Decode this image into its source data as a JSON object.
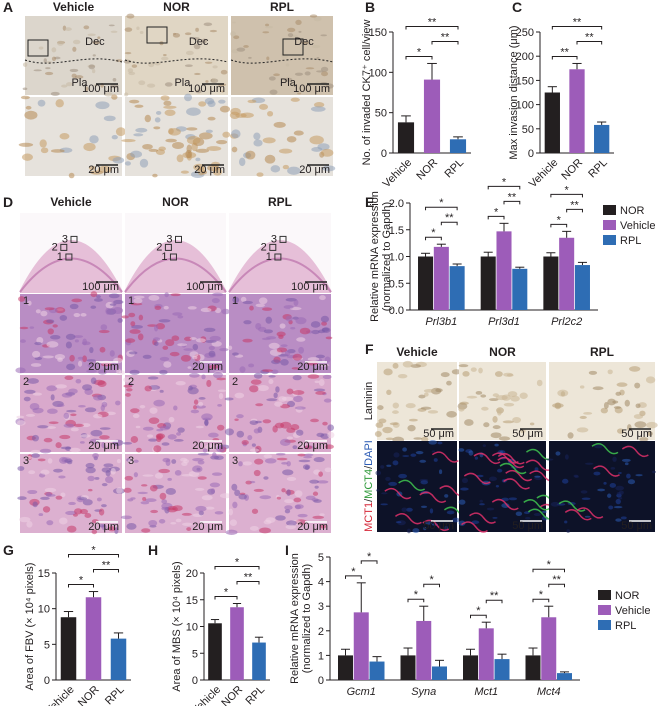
{
  "image_panels": [
    {
      "letter": "A",
      "columns": [
        "Vehicle",
        "NOR",
        "RPL"
      ],
      "zones": [
        "Dec",
        "Pla"
      ],
      "scale_overview": "100 μm",
      "scale_detail": "20 μm"
    },
    {
      "letter": "D",
      "columns": [
        "Vehicle",
        "NOR",
        "RPL"
      ],
      "regions": [
        "1",
        "2",
        "3"
      ],
      "scale_overview": "100 μm",
      "scale_detail": "20 μm"
    },
    {
      "letter": "F",
      "columns": [
        "Vehicle",
        "NOR",
        "RPL"
      ],
      "row_label": "Laminin",
      "stain_label": [
        {
          "text": "MCT1",
          "color": "#d62839"
        },
        {
          "text": "/",
          "color": "#231f20"
        },
        {
          "text": "MCT4",
          "color": "#2f9a3a"
        },
        {
          "text": "/",
          "color": "#231f20"
        },
        {
          "text": "DAPI",
          "color": "#2b5bb5"
        }
      ],
      "scale_detail": "50 μm"
    }
  ],
  "chart_data": [
    {
      "type": "bar",
      "panel": "B",
      "ylabel": "No. of invaded CK7⁺ cell/view",
      "categories": [
        "Vehicle",
        "NOR",
        "RPL"
      ],
      "values": [
        38,
        91,
        17
      ],
      "errors": [
        8,
        20,
        3
      ],
      "colors": [
        "#231f20",
        "#9d5cb9",
        "#2e6db4"
      ],
      "ylim": [
        0,
        150
      ],
      "yticks": [
        0,
        50,
        100,
        150
      ],
      "significance": [
        {
          "between": [
            "Vehicle",
            "NOR"
          ],
          "label": "*"
        },
        {
          "between": [
            "NOR",
            "RPL"
          ],
          "label": "**"
        },
        {
          "between": [
            "Vehicle",
            "RPL"
          ],
          "label": "**"
        }
      ]
    },
    {
      "type": "bar",
      "panel": "C",
      "ylabel": "Max invasion distance (μm)",
      "categories": [
        "Vehicle",
        "NOR",
        "RPL"
      ],
      "values": [
        125,
        173,
        58
      ],
      "errors": [
        12,
        12,
        6
      ],
      "colors": [
        "#231f20",
        "#9d5cb9",
        "#2e6db4"
      ],
      "ylim": [
        0,
        250
      ],
      "yticks": [
        0,
        50,
        100,
        150,
        200,
        250
      ],
      "significance": [
        {
          "between": [
            "Vehicle",
            "NOR"
          ],
          "label": "**"
        },
        {
          "between": [
            "NOR",
            "RPL"
          ],
          "label": "**"
        },
        {
          "between": [
            "Vehicle",
            "RPL"
          ],
          "label": "**"
        }
      ]
    },
    {
      "type": "grouped_bar",
      "panel": "E",
      "ylabel": [
        "Relative mRNA expression",
        "(normalized to Gapdh)"
      ],
      "categories": [
        "Prl3b1",
        "Prl3d1",
        "Prl2c2"
      ],
      "series": [
        {
          "name": "NOR",
          "color": "#231f20",
          "values": [
            1.0,
            1.0,
            1.0
          ],
          "errors": [
            0.06,
            0.08,
            0.07
          ]
        },
        {
          "name": "Vehicle",
          "color": "#9d5cb9",
          "values": [
            1.18,
            1.47,
            1.35
          ],
          "errors": [
            0.05,
            0.15,
            0.12
          ]
        },
        {
          "name": "RPL",
          "color": "#2e6db4",
          "values": [
            0.82,
            0.77,
            0.84
          ],
          "errors": [
            0.04,
            0.03,
            0.05
          ]
        }
      ],
      "ylim": [
        0,
        2
      ],
      "yticks": [
        {
          "value": 0,
          "label": "0.0"
        },
        0.5,
        {
          "value": 1,
          "label": "1.0"
        },
        1.5,
        {
          "value": 2,
          "label": "2.0"
        }
      ],
      "significance": [
        {
          "category": "Prl3b1",
          "between": [
            "NOR",
            "Vehicle"
          ],
          "label": "*"
        },
        {
          "category": "Prl3b1",
          "between": [
            "Vehicle",
            "RPL"
          ],
          "label": "**"
        },
        {
          "category": "Prl3b1",
          "between": [
            "NOR",
            "RPL"
          ],
          "label": "*"
        },
        {
          "category": "Prl3d1",
          "between": [
            "NOR",
            "Vehicle"
          ],
          "label": "*"
        },
        {
          "category": "Prl3d1",
          "between": [
            "Vehicle",
            "RPL"
          ],
          "label": "**"
        },
        {
          "category": "Prl3d1",
          "between": [
            "NOR",
            "RPL"
          ],
          "label": "*"
        },
        {
          "category": "Prl2c2",
          "between": [
            "NOR",
            "Vehicle"
          ],
          "label": "*"
        },
        {
          "category": "Prl2c2",
          "between": [
            "Vehicle",
            "RPL"
          ],
          "label": "**"
        },
        {
          "category": "Prl2c2",
          "between": [
            "NOR",
            "RPL"
          ],
          "label": "*"
        }
      ]
    },
    {
      "type": "bar",
      "panel": "G",
      "ylabel": "Area of FBV (× 10⁴ pixels)",
      "categories": [
        "Vehicle",
        "NOR",
        "RPL"
      ],
      "values": [
        8.8,
        11.6,
        5.8
      ],
      "errors": [
        0.8,
        0.8,
        0.8
      ],
      "colors": [
        "#231f20",
        "#9d5cb9",
        "#2e6db4"
      ],
      "ylim": [
        0,
        15
      ],
      "yticks": [
        0,
        5,
        10,
        15
      ],
      "significance": [
        {
          "between": [
            "Vehicle",
            "NOR"
          ],
          "label": "*"
        },
        {
          "between": [
            "NOR",
            "RPL"
          ],
          "label": "**"
        },
        {
          "between": [
            "Vehicle",
            "RPL"
          ],
          "label": "*"
        }
      ]
    },
    {
      "type": "bar",
      "panel": "H",
      "ylabel": "Area of MBS (× 10⁴ pixels)",
      "categories": [
        "Vehicle",
        "NOR",
        "RPL"
      ],
      "values": [
        10.6,
        13.6,
        7
      ],
      "errors": [
        0.7,
        0.7,
        1.0
      ],
      "colors": [
        "#231f20",
        "#9d5cb9",
        "#2e6db4"
      ],
      "ylim": [
        0,
        20
      ],
      "yticks": [
        0,
        5,
        10,
        15,
        20
      ],
      "significance": [
        {
          "between": [
            "Vehicle",
            "NOR"
          ],
          "label": "*"
        },
        {
          "between": [
            "NOR",
            "RPL"
          ],
          "label": "**"
        },
        {
          "between": [
            "Vehicle",
            "RPL"
          ],
          "label": "*"
        }
      ]
    },
    {
      "type": "grouped_bar",
      "panel": "I",
      "ylabel": [
        "Relative mRNA expression",
        "(normalized to Gapdh)"
      ],
      "categories": [
        "Gcm1",
        "Syna",
        "Mct1",
        "Mct4"
      ],
      "series": [
        {
          "name": "NOR",
          "color": "#231f20",
          "values": [
            1,
            1,
            1,
            1
          ],
          "errors": [
            0.25,
            0.3,
            0.25,
            0.3
          ]
        },
        {
          "name": "Vehicle",
          "color": "#9d5cb9",
          "values": [
            2.75,
            2.4,
            2.1,
            2.55
          ],
          "errors": [
            1.2,
            0.6,
            0.25,
            0.45
          ]
        },
        {
          "name": "RPL",
          "color": "#2e6db4",
          "values": [
            0.75,
            0.55,
            0.85,
            0.28
          ],
          "errors": [
            0.2,
            0.25,
            0.2,
            0.05
          ]
        }
      ],
      "ylim": [
        0,
        5
      ],
      "yticks": [
        0,
        1,
        2,
        3,
        4,
        5
      ],
      "significance": [
        {
          "category": "Gcm1",
          "between": [
            "NOR",
            "Vehicle"
          ],
          "label": "*"
        },
        {
          "category": "Gcm1",
          "between": [
            "Vehicle",
            "RPL"
          ],
          "label": "*"
        },
        {
          "category": "Syna",
          "between": [
            "NOR",
            "Vehicle"
          ],
          "label": "*"
        },
        {
          "category": "Syna",
          "between": [
            "Vehicle",
            "RPL"
          ],
          "label": "*"
        },
        {
          "category": "Mct1",
          "between": [
            "NOR",
            "Vehicle"
          ],
          "label": "*"
        },
        {
          "category": "Mct1",
          "between": [
            "Vehicle",
            "RPL"
          ],
          "label": "**"
        },
        {
          "category": "Mct4",
          "between": [
            "NOR",
            "Vehicle"
          ],
          "label": "*"
        },
        {
          "category": "Mct4",
          "between": [
            "Vehicle",
            "RPL"
          ],
          "label": "**"
        },
        {
          "category": "Mct4",
          "between": [
            "NOR",
            "RPL"
          ],
          "label": "*"
        }
      ]
    }
  ]
}
